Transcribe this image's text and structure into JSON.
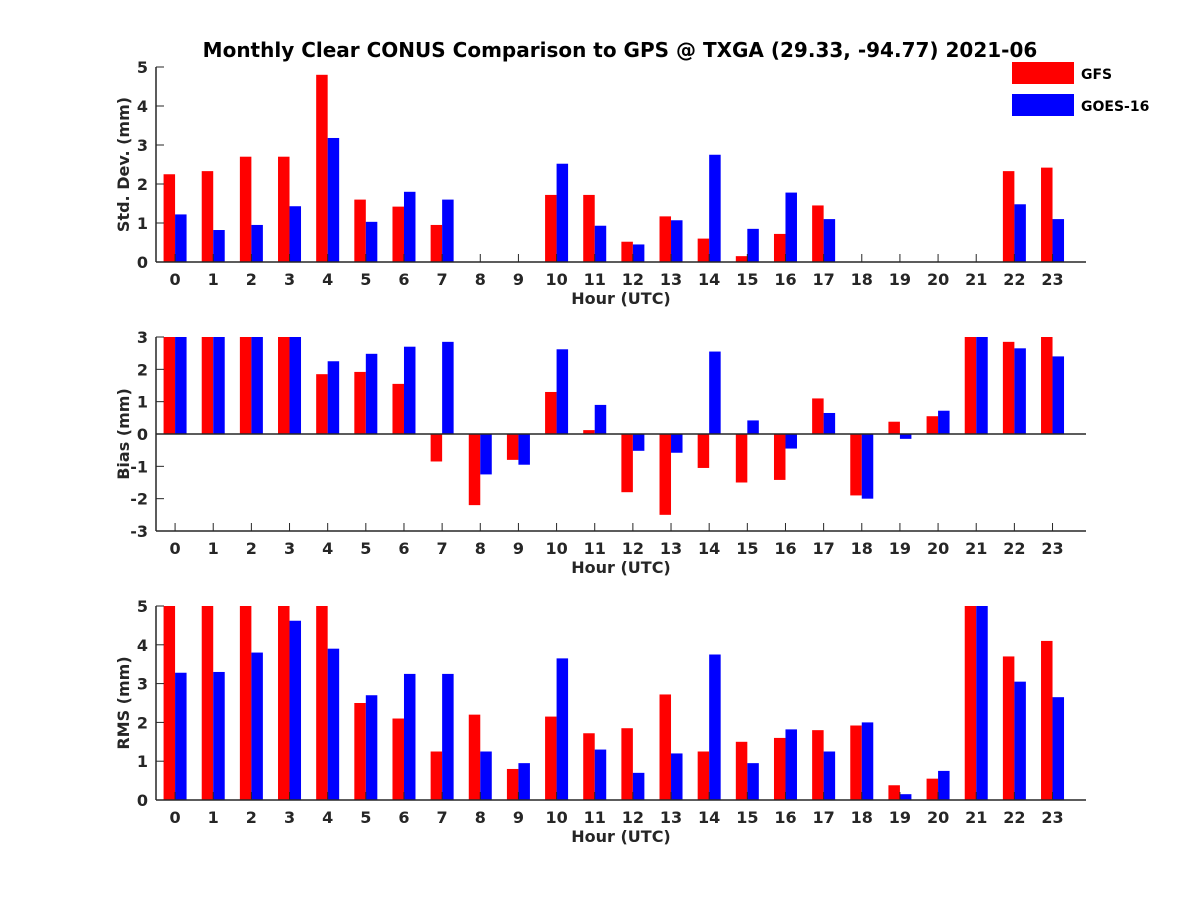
{
  "figure": {
    "title": "Monthly Clear CONUS Comparison to GPS @ TXGA (29.33, -94.77) 2021-06"
  },
  "legend": {
    "placement": "top-right",
    "entries": [
      {
        "name": "GFS",
        "color": "#ff0000"
      },
      {
        "name": "GOES-16",
        "color": "#0000ff"
      }
    ]
  },
  "chart_data": [
    {
      "type": "bar",
      "xlabel": "Hour (UTC)",
      "ylabel": "Std. Dev. (mm)",
      "ylim": [
        0,
        5
      ],
      "yticks": [
        0,
        1,
        2,
        3,
        4,
        5
      ],
      "categories": [
        "0",
        "1",
        "2",
        "3",
        "4",
        "5",
        "6",
        "7",
        "8",
        "9",
        "10",
        "11",
        "12",
        "13",
        "14",
        "15",
        "16",
        "17",
        "18",
        "19",
        "20",
        "21",
        "22",
        "23"
      ],
      "series": [
        {
          "name": "GFS",
          "color": "#ff0000",
          "values": [
            2.25,
            2.33,
            2.7,
            2.7,
            4.8,
            1.6,
            1.42,
            0.95,
            0,
            0,
            1.72,
            1.72,
            0.52,
            1.17,
            0.6,
            0.15,
            0.72,
            1.45,
            0,
            0,
            0,
            0,
            2.33,
            2.42
          ]
        },
        {
          "name": "GOES-16",
          "color": "#0000ff",
          "values": [
            1.22,
            0.82,
            0.95,
            1.43,
            3.18,
            1.03,
            1.8,
            1.6,
            0,
            0,
            2.52,
            0.93,
            0.45,
            1.07,
            2.75,
            0.85,
            1.78,
            1.1,
            0,
            0,
            0,
            0,
            1.48,
            1.1
          ]
        }
      ]
    },
    {
      "type": "bar",
      "xlabel": "Hour (UTC)",
      "ylabel": "Bias (mm)",
      "ylim": [
        -3,
        3
      ],
      "yticks": [
        -3,
        -2,
        -1,
        0,
        1,
        2,
        3
      ],
      "categories": [
        "0",
        "1",
        "2",
        "3",
        "4",
        "5",
        "6",
        "7",
        "8",
        "9",
        "10",
        "11",
        "12",
        "13",
        "14",
        "15",
        "16",
        "17",
        "18",
        "19",
        "20",
        "21",
        "22",
        "23"
      ],
      "series": [
        {
          "name": "GFS",
          "color": "#ff0000",
          "values": [
            3.0,
            3.0,
            3.0,
            3.0,
            1.85,
            1.92,
            1.55,
            -0.85,
            -2.2,
            -0.8,
            1.3,
            0.12,
            -1.8,
            -2.5,
            -1.05,
            -1.5,
            -1.42,
            1.1,
            -1.9,
            0.38,
            0.55,
            3.0,
            2.85,
            3.0
          ]
        },
        {
          "name": "GOES-16",
          "color": "#0000ff",
          "values": [
            3.0,
            3.0,
            3.0,
            3.0,
            2.25,
            2.48,
            2.7,
            2.85,
            -1.25,
            -0.95,
            2.62,
            0.9,
            -0.52,
            -0.58,
            2.55,
            0.42,
            -0.45,
            0.65,
            -2.0,
            -0.15,
            0.72,
            3.0,
            2.65,
            2.4
          ]
        }
      ]
    },
    {
      "type": "bar",
      "xlabel": "Hour (UTC)",
      "ylabel": "RMS (mm)",
      "ylim": [
        0,
        5
      ],
      "yticks": [
        0,
        1,
        2,
        3,
        4,
        5
      ],
      "categories": [
        "0",
        "1",
        "2",
        "3",
        "4",
        "5",
        "6",
        "7",
        "8",
        "9",
        "10",
        "11",
        "12",
        "13",
        "14",
        "15",
        "16",
        "17",
        "18",
        "19",
        "20",
        "21",
        "22",
        "23"
      ],
      "series": [
        {
          "name": "GFS",
          "color": "#ff0000",
          "values": [
            5.0,
            5.0,
            5.0,
            5.0,
            5.0,
            2.5,
            2.1,
            1.25,
            2.2,
            0.8,
            2.15,
            1.72,
            1.85,
            2.72,
            1.25,
            1.5,
            1.6,
            1.8,
            1.92,
            0.38,
            0.55,
            5.0,
            3.7,
            4.1
          ]
        },
        {
          "name": "GOES-16",
          "color": "#0000ff",
          "values": [
            3.28,
            3.3,
            3.8,
            4.62,
            3.9,
            2.7,
            3.25,
            3.25,
            1.25,
            0.95,
            3.65,
            1.3,
            0.7,
            1.2,
            3.75,
            0.95,
            1.82,
            1.25,
            2.0,
            0.15,
            0.75,
            5.0,
            3.05,
            2.65
          ]
        }
      ]
    }
  ]
}
